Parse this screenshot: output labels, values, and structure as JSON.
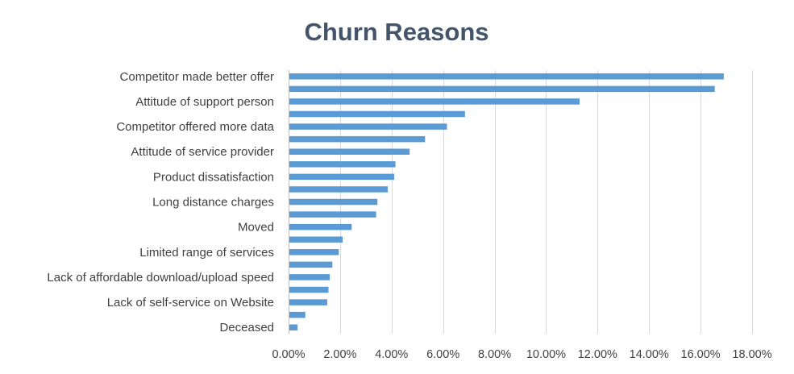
{
  "chart_data": {
    "type": "bar",
    "orientation": "horizontal",
    "title": "Churn Reasons",
    "xlabel": "",
    "ylabel": "",
    "xlim": [
      0,
      18
    ],
    "x_ticks": [
      "0.00%",
      "2.00%",
      "4.00%",
      "6.00%",
      "8.00%",
      "10.00%",
      "12.00%",
      "14.00%",
      "16.00%",
      "18.00%"
    ],
    "grid": true,
    "legend": "none",
    "bar_color": "#5b9bd5",
    "categories": [
      "Competitor made better offer",
      "",
      "Attitude of support person",
      "",
      "Competitor offered more data",
      "",
      "Attitude of service provider",
      "",
      "Product dissatisfaction",
      "",
      "Long distance charges",
      "",
      "Moved",
      "",
      "Limited range of services",
      "",
      "Lack of affordable download/upload speed",
      "",
      "Lack of self-service on Website",
      "",
      "Deceased"
    ],
    "values": [
      16.9,
      16.55,
      11.3,
      6.85,
      6.15,
      5.3,
      4.7,
      4.15,
      4.1,
      3.85,
      3.45,
      3.4,
      2.45,
      2.1,
      1.95,
      1.7,
      1.6,
      1.55,
      1.5,
      0.65,
      0.35
    ]
  }
}
